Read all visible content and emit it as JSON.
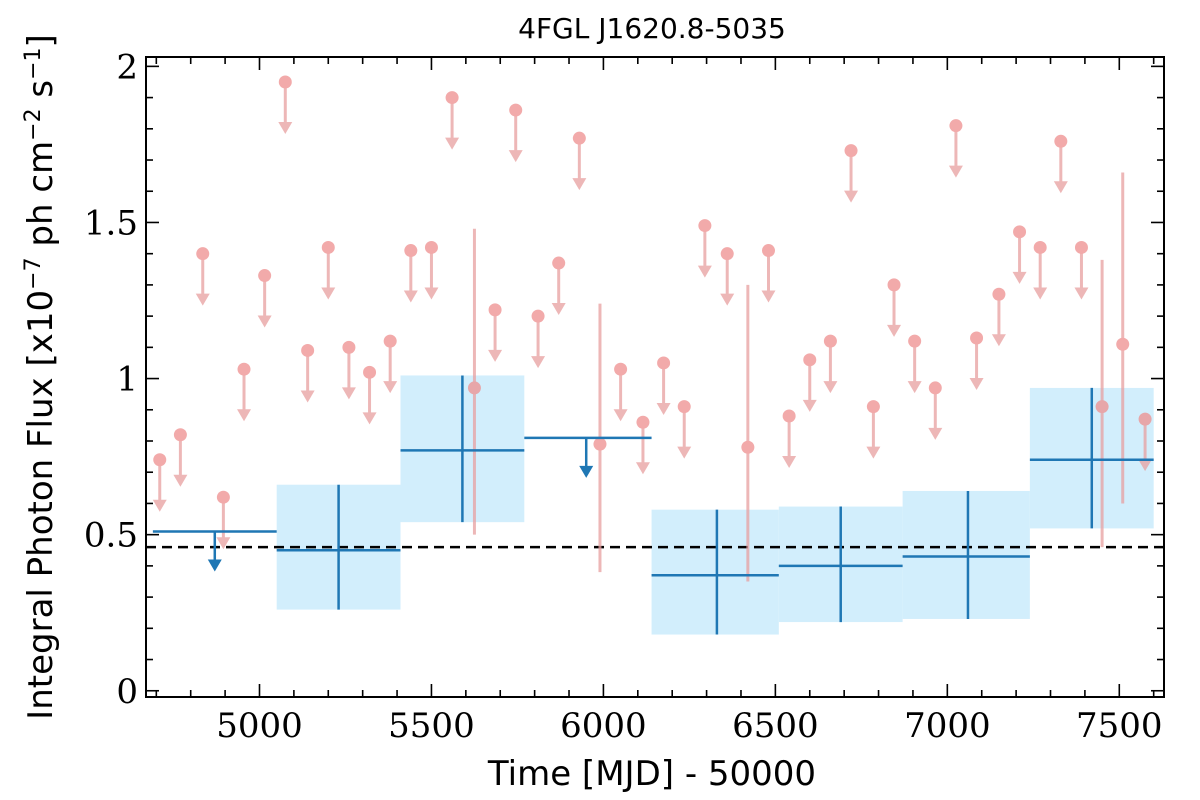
{
  "chart_data": {
    "type": "scatter",
    "title": "4FGL J1620.8-5035",
    "xlabel": "Time [MJD] - 50000",
    "ylabel_parts": [
      "Integral Photon Flux [x10",
      "−7",
      " ph cm",
      "−2",
      " s",
      "−1",
      "]"
    ],
    "xlim": [
      4670,
      7630
    ],
    "ylim": [
      -0.02,
      2.03
    ],
    "x_ticks": [
      5000,
      5500,
      6000,
      6500,
      7000,
      7500
    ],
    "x_tick_labels": [
      "5000",
      "5500",
      "6000",
      "6500",
      "7000",
      "7500"
    ],
    "y_ticks": [
      0,
      0.5,
      1,
      1.5,
      2
    ],
    "y_tick_labels": [
      "0",
      "0.5",
      "1",
      "1.5",
      "2"
    ],
    "reference_flux": 0.46,
    "colors": {
      "short_bins": "#e8a0a0",
      "short_bins_marker": "#ee8e8e",
      "long_bins": "#1f77b4",
      "long_bins_band": "#d2eefc",
      "reference_line": "#000000"
    },
    "long_bins": [
      {
        "x": 4870,
        "x_lo": 4690,
        "x_hi": 5050,
        "y": 0.51,
        "upper_limit": true
      },
      {
        "x": 5230,
        "x_lo": 5050,
        "x_hi": 5410,
        "y": 0.45,
        "y_lo": 0.26,
        "y_hi": 0.66
      },
      {
        "x": 5590,
        "x_lo": 5410,
        "x_hi": 5770,
        "y": 0.77,
        "y_lo": 0.54,
        "y_hi": 1.01
      },
      {
        "x": 5950,
        "x_lo": 5770,
        "x_hi": 6140,
        "y": 0.81,
        "upper_limit": true
      },
      {
        "x": 6330,
        "x_lo": 6140,
        "x_hi": 6510,
        "y": 0.37,
        "y_lo": 0.18,
        "y_hi": 0.58
      },
      {
        "x": 6690,
        "x_lo": 6510,
        "x_hi": 6870,
        "y": 0.4,
        "y_lo": 0.22,
        "y_hi": 0.59
      },
      {
        "x": 7060,
        "x_lo": 6870,
        "x_hi": 7240,
        "y": 0.43,
        "y_lo": 0.23,
        "y_hi": 0.64
      },
      {
        "x": 7420,
        "x_lo": 7240,
        "x_hi": 7600,
        "y": 0.74,
        "y_lo": 0.52,
        "y_hi": 0.97
      }
    ],
    "short_bins": [
      {
        "x": 4710,
        "y": 0.74,
        "upper_limit": true
      },
      {
        "x": 4770,
        "y": 0.82,
        "upper_limit": true
      },
      {
        "x": 4835,
        "y": 1.4,
        "upper_limit": true
      },
      {
        "x": 4895,
        "y": 0.62,
        "upper_limit": true
      },
      {
        "x": 4955,
        "y": 1.03,
        "upper_limit": true
      },
      {
        "x": 5015,
        "y": 1.33,
        "upper_limit": true
      },
      {
        "x": 5075,
        "y": 1.95,
        "upper_limit": true
      },
      {
        "x": 5140,
        "y": 1.09,
        "upper_limit": true
      },
      {
        "x": 5200,
        "y": 1.42,
        "upper_limit": true
      },
      {
        "x": 5260,
        "y": 1.1,
        "upper_limit": true
      },
      {
        "x": 5320,
        "y": 1.02,
        "upper_limit": true
      },
      {
        "x": 5380,
        "y": 1.12,
        "upper_limit": true
      },
      {
        "x": 5440,
        "y": 1.41,
        "upper_limit": true
      },
      {
        "x": 5500,
        "y": 1.42,
        "upper_limit": true
      },
      {
        "x": 5560,
        "y": 1.9,
        "upper_limit": true
      },
      {
        "x": 5625,
        "y": 0.97,
        "y_lo": 0.5,
        "y_hi": 1.48
      },
      {
        "x": 5685,
        "y": 1.22,
        "upper_limit": true
      },
      {
        "x": 5745,
        "y": 1.86,
        "upper_limit": true
      },
      {
        "x": 5810,
        "y": 1.2,
        "upper_limit": true
      },
      {
        "x": 5870,
        "y": 1.37,
        "upper_limit": true
      },
      {
        "x": 5930,
        "y": 1.77,
        "upper_limit": true
      },
      {
        "x": 5990,
        "y": 0.79,
        "y_lo": 0.38,
        "y_hi": 1.24
      },
      {
        "x": 6050,
        "y": 1.03,
        "upper_limit": true
      },
      {
        "x": 6115,
        "y": 0.86,
        "upper_limit": true
      },
      {
        "x": 6175,
        "y": 1.05,
        "upper_limit": true
      },
      {
        "x": 6235,
        "y": 0.91,
        "upper_limit": true
      },
      {
        "x": 6295,
        "y": 1.49,
        "upper_limit": true
      },
      {
        "x": 6360,
        "y": 1.4,
        "upper_limit": true
      },
      {
        "x": 6420,
        "y": 0.78,
        "y_lo": 0.35,
        "y_hi": 1.3
      },
      {
        "x": 6480,
        "y": 1.41,
        "upper_limit": true
      },
      {
        "x": 6540,
        "y": 0.88,
        "upper_limit": true
      },
      {
        "x": 6600,
        "y": 1.06,
        "upper_limit": true
      },
      {
        "x": 6660,
        "y": 1.12,
        "upper_limit": true
      },
      {
        "x": 6720,
        "y": 1.73,
        "upper_limit": true
      },
      {
        "x": 6785,
        "y": 0.91,
        "upper_limit": true
      },
      {
        "x": 6845,
        "y": 1.3,
        "upper_limit": true
      },
      {
        "x": 6905,
        "y": 1.12,
        "upper_limit": true
      },
      {
        "x": 6965,
        "y": 0.97,
        "upper_limit": true
      },
      {
        "x": 7025,
        "y": 1.81,
        "upper_limit": true
      },
      {
        "x": 7085,
        "y": 1.13,
        "upper_limit": true
      },
      {
        "x": 7150,
        "y": 1.27,
        "upper_limit": true
      },
      {
        "x": 7210,
        "y": 1.47,
        "upper_limit": true
      },
      {
        "x": 7270,
        "y": 1.42,
        "upper_limit": true
      },
      {
        "x": 7330,
        "y": 1.76,
        "upper_limit": true
      },
      {
        "x": 7390,
        "y": 1.42,
        "upper_limit": true
      },
      {
        "x": 7450,
        "y": 0.91,
        "y_lo": 0.46,
        "y_hi": 1.38
      },
      {
        "x": 7510,
        "y": 1.11,
        "y_lo": 0.6,
        "y_hi": 1.66
      },
      {
        "x": 7575,
        "y": 0.87,
        "upper_limit": true
      }
    ]
  }
}
